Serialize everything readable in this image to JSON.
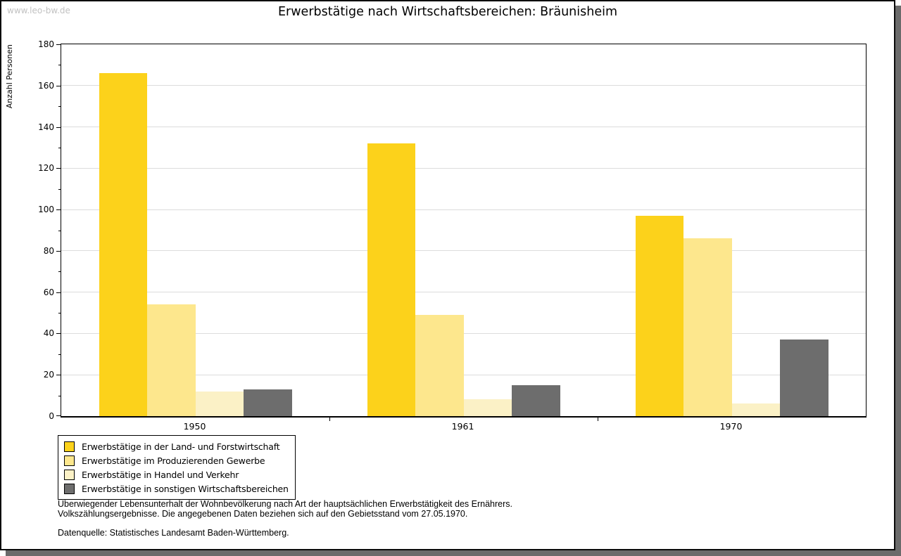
{
  "window": {
    "watermark": "www.leo-bw.de",
    "title": "Erwerbstätige nach Wirtschaftsbereichen: Bräunisheim"
  },
  "chart_data": {
    "type": "bar",
    "title": "Erwerbstätige nach Wirtschaftsbereichen: Bräunisheim",
    "xlabel": "",
    "ylabel": "Anzahl Personen",
    "categories": [
      "1950",
      "1961",
      "1970"
    ],
    "series": [
      {
        "name": "Erwerbstätige in der Land- und Forstwirtschaft",
        "color": "#fcd21b",
        "values": [
          166,
          132,
          97
        ]
      },
      {
        "name": "Erwerbstätige im Produzierenden Gewerbe",
        "color": "#fde78d",
        "values": [
          54,
          49,
          86
        ]
      },
      {
        "name": "Erwerbstätige in Handel und Verkehr",
        "color": "#fbf1c6",
        "values": [
          12,
          8,
          6
        ]
      },
      {
        "name": "Erwerbstätige in sonstigen Wirtschaftsbereichen",
        "color": "#6d6d6d",
        "values": [
          13,
          15,
          37
        ]
      }
    ],
    "ylim": [
      0,
      180
    ],
    "ytick_step": 20,
    "yminor_step": 10,
    "yticks": [
      0,
      20,
      40,
      60,
      80,
      100,
      120,
      140,
      160,
      180
    ],
    "grid": "horizontal-major",
    "legend_position": "bottom-left",
    "colors": {
      "axis": "#000000",
      "gridline": "#dcdcdc",
      "frame_shadow": "#6b6b6b",
      "watermark_text": "#c2c2c2"
    }
  },
  "footnotes": {
    "line1": "Überwiegender Lebensunterhalt der Wohnbevölkerung nach Art der hauptsächlichen Erwerbstätigkeit des Ernährers.",
    "line2": "Volkszählungsergebnisse. Die angegebenen Daten beziehen sich auf den Gebietsstand vom 27.05.1970.",
    "source": "Datenquelle: Statistisches Landesamt Baden-Württemberg."
  }
}
